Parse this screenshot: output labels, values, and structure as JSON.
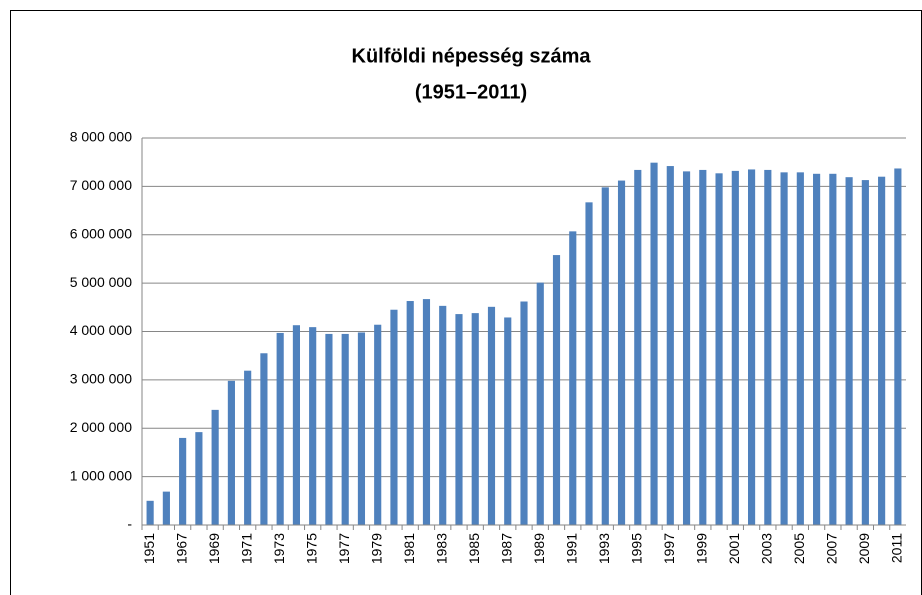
{
  "chart_data": {
    "type": "bar",
    "title": "Külföldi népesség száma",
    "subtitle": "(1951–2011)",
    "categories": [
      "1951",
      null,
      "1967",
      null,
      "1969",
      null,
      "1971",
      null,
      "1973",
      null,
      "1975",
      null,
      "1977",
      null,
      "1979",
      null,
      "1981",
      null,
      "1983",
      null,
      "1985",
      null,
      "1987",
      null,
      "1989",
      null,
      "1991",
      null,
      "1993",
      null,
      "1995",
      null,
      "1997",
      null,
      "1999",
      null,
      "2001",
      null,
      "2003",
      null,
      "2005",
      null,
      "2007",
      null,
      "2009",
      null,
      "2011"
    ],
    "values": [
      500000,
      690000,
      1800000,
      1920000,
      2380000,
      2980000,
      3190000,
      3550000,
      3970000,
      4130000,
      4090000,
      3950000,
      3950000,
      3980000,
      4140000,
      4450000,
      4630000,
      4670000,
      4530000,
      4360000,
      4380000,
      4510000,
      4290000,
      4620000,
      5010000,
      5580000,
      6070000,
      6670000,
      6980000,
      7120000,
      7340000,
      7490000,
      7420000,
      7310000,
      7340000,
      7270000,
      7320000,
      7350000,
      7340000,
      7290000,
      7290000,
      7260000,
      7260000,
      7190000,
      7130000,
      7200000,
      7370000
    ],
    "color": "#4f81bd",
    "ylim": [
      0,
      8000000
    ],
    "yticks": [
      {
        "value": 0,
        "label": "-"
      },
      {
        "value": 1000000,
        "label": "1 000 000"
      },
      {
        "value": 2000000,
        "label": "2 000 000"
      },
      {
        "value": 3000000,
        "label": "3 000 000"
      },
      {
        "value": 4000000,
        "label": "4 000 000"
      },
      {
        "value": 5000000,
        "label": "5 000 000"
      },
      {
        "value": 6000000,
        "label": "6 000 000"
      },
      {
        "value": 7000000,
        "label": "7 000 000"
      },
      {
        "value": 8000000,
        "label": "8 000 000"
      }
    ],
    "grid": true
  }
}
